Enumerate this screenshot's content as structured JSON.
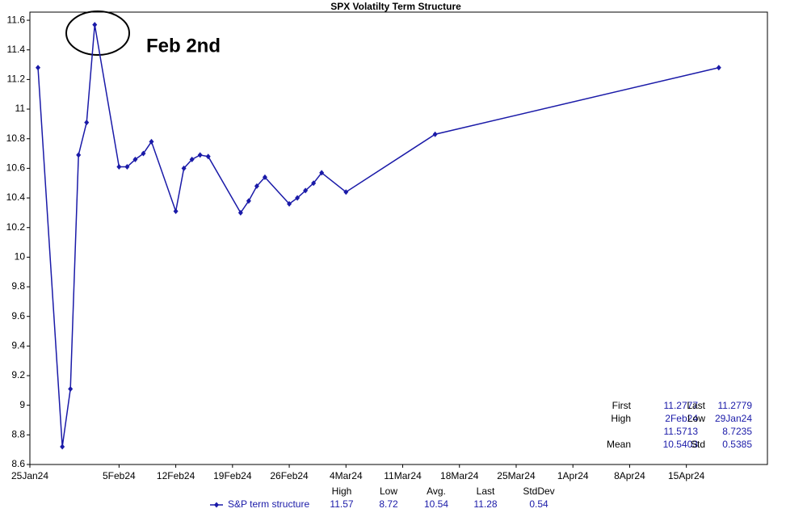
{
  "chart_data": {
    "type": "line",
    "title": "SPX Volatilty Term Structure",
    "annotation": "Feb 2nd",
    "x": [
      "2024-01-26",
      "2024-01-29",
      "2024-01-30",
      "2024-01-31",
      "2024-02-01",
      "2024-02-02",
      "2024-02-05",
      "2024-02-06",
      "2024-02-07",
      "2024-02-08",
      "2024-02-09",
      "2024-02-12",
      "2024-02-13",
      "2024-02-14",
      "2024-02-15",
      "2024-02-16",
      "2024-02-20",
      "2024-02-21",
      "2024-02-22",
      "2024-02-23",
      "2024-02-26",
      "2024-02-27",
      "2024-02-28",
      "2024-02-29",
      "2024-03-01",
      "2024-03-04",
      "2024-03-15",
      "2024-04-19"
    ],
    "series": [
      {
        "name": "S&P term structure",
        "color": "#1a1aa8",
        "values": [
          11.28,
          8.72,
          9.11,
          10.69,
          10.91,
          11.57,
          10.61,
          10.61,
          10.66,
          10.7,
          10.78,
          10.31,
          10.6,
          10.66,
          10.69,
          10.68,
          10.3,
          10.38,
          10.48,
          10.54,
          10.36,
          10.4,
          10.45,
          10.5,
          10.57,
          10.44,
          10.83,
          11.28
        ]
      }
    ],
    "xlim": [
      "2024-01-25",
      "2024-04-25"
    ],
    "xticks": [
      {
        "value": "2024-01-25",
        "label": "25Jan24"
      },
      {
        "value": "2024-02-05",
        "label": "5Feb24"
      },
      {
        "value": "2024-02-12",
        "label": "12Feb24"
      },
      {
        "value": "2024-02-19",
        "label": "19Feb24"
      },
      {
        "value": "2024-02-26",
        "label": "26Feb24"
      },
      {
        "value": "2024-03-04",
        "label": "4Mar24"
      },
      {
        "value": "2024-03-11",
        "label": "11Mar24"
      },
      {
        "value": "2024-03-18",
        "label": "18Mar24"
      },
      {
        "value": "2024-03-25",
        "label": "25Mar24"
      },
      {
        "value": "2024-04-01",
        "label": "1Apr24"
      },
      {
        "value": "2024-04-08",
        "label": "8Apr24"
      },
      {
        "value": "2024-04-15",
        "label": "15Apr24"
      }
    ],
    "ylim": [
      8.6,
      11.655
    ],
    "yticks": [
      8.6,
      8.8,
      9,
      9.2,
      9.4,
      9.6,
      9.8,
      10,
      10.2,
      10.4,
      10.6,
      10.8,
      11,
      11.2,
      11.4,
      11.6
    ],
    "stats": [
      [
        "First",
        "11.2777",
        "Last",
        "11.2779"
      ],
      [
        "High",
        "2Feb24",
        "Low",
        "29Jan24"
      ],
      [
        null,
        "11.5713",
        null,
        "8.7235"
      ],
      [
        "Mean",
        "10.5403",
        "Std",
        "0.5385"
      ]
    ],
    "summary": {
      "headers": [
        "High",
        "Low",
        "Avg.",
        "Last",
        "StdDev"
      ],
      "values": [
        "11.57",
        "8.72",
        "10.54",
        "11.28",
        "0.54"
      ]
    }
  }
}
